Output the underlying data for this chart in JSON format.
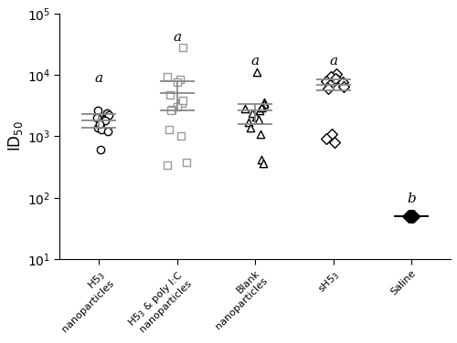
{
  "group_labels": [
    "H5₃\nnanoparticles",
    "H5₃ & poly I:C\nnanoparticles",
    "Blank\nnanoparticles",
    "sH5₃",
    "Saline"
  ],
  "letters": [
    "a",
    "a",
    "a",
    "a",
    "b"
  ],
  "markers": [
    "o",
    "s",
    "^",
    "D",
    "D"
  ],
  "face_colors": [
    "white",
    "white",
    "white",
    "white",
    "black"
  ],
  "edge_colors": [
    "black",
    "#999999",
    "black",
    "black",
    "black"
  ],
  "group1_data": [
    2100,
    1900,
    1700,
    1500,
    1400,
    1300,
    2600,
    2400,
    2200,
    2000,
    1800,
    1600,
    600,
    1200
  ],
  "group2_data": [
    28000,
    9500,
    8500,
    3500,
    3000,
    2700,
    2600,
    3800,
    4800,
    1300,
    1000,
    380,
    340,
    7500
  ],
  "group3_data": [
    11000,
    3600,
    3300,
    3000,
    2800,
    2600,
    2400,
    2100,
    1900,
    1700,
    1400,
    1100,
    420,
    360,
    2900
  ],
  "group4_data": [
    10500,
    9500,
    8500,
    8000,
    7500,
    7000,
    6500,
    6000,
    8800,
    1100,
    900,
    800
  ],
  "group5_data": [
    50,
    50,
    50,
    50,
    50,
    50,
    50,
    50,
    50
  ],
  "mean1": 1800,
  "sem1_lo": 1400,
  "sem1_hi": 2300,
  "mean2": 5000,
  "sem2_lo": 2600,
  "sem2_hi": 7800,
  "mean3": 2600,
  "sem3_lo": 1600,
  "sem3_hi": 3400,
  "mean4": 7000,
  "sem4_lo": 5600,
  "sem4_hi": 8400,
  "mean5": 50,
  "sem5_lo": 50,
  "sem5_hi": 50,
  "ylim_lo": 10,
  "ylim_hi": 100000,
  "ylabel": "ID$_{50}$",
  "letter_fontsize": 11,
  "tick_fontsize": 8,
  "ylabel_fontsize": 12
}
